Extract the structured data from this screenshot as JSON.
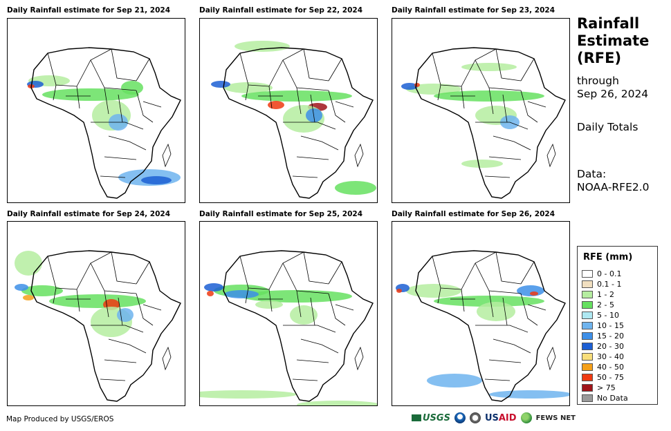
{
  "panels": [
    {
      "title": "Daily Rainfall estimate for Sep 21, 2024"
    },
    {
      "title": "Daily Rainfall estimate for Sep 22, 2024"
    },
    {
      "title": "Daily Rainfall estimate for Sep 23, 2024"
    },
    {
      "title": "Daily Rainfall estimate for Sep 24, 2024"
    },
    {
      "title": "Daily Rainfall estimate for Sep 25, 2024"
    },
    {
      "title": "Daily Rainfall estimate for Sep 26, 2024"
    }
  ],
  "side": {
    "title_lines": [
      "Rainfall",
      "Estimate",
      "(RFE)"
    ],
    "through_label": "through",
    "through_date": "Sep 26, 2024",
    "totals": "Daily Totals",
    "data_label": "Data:",
    "data_source": "NOAA-RFE2.0"
  },
  "legend": {
    "title": "RFE (mm)",
    "items": [
      {
        "label": "0 - 0.1",
        "color": "#ffffff"
      },
      {
        "label": "0.1 - 1",
        "color": "#f1dfc0"
      },
      {
        "label": "1 - 2",
        "color": "#b5eda0"
      },
      {
        "label": "2 - 5",
        "color": "#66e060"
      },
      {
        "label": "5 - 10",
        "color": "#aee8f2"
      },
      {
        "label": "10 - 15",
        "color": "#6fb4ee"
      },
      {
        "label": "15 - 20",
        "color": "#3d8fe8"
      },
      {
        "label": "20 - 30",
        "color": "#1c5fd4"
      },
      {
        "label": "30 - 40",
        "color": "#f8de7a"
      },
      {
        "label": "40 - 50",
        "color": "#f5a01a"
      },
      {
        "label": "50 - 75",
        "color": "#ef3a12"
      },
      {
        "label": "> 75",
        "color": "#a0141a"
      },
      {
        "label": "No Data",
        "color": "#9a9a9a"
      }
    ]
  },
  "footer": {
    "credit": "Map Produced by USGS/EROS",
    "logos": {
      "usgs": "USGS",
      "usaid_a": "US",
      "usaid_b": "AID",
      "fews": "FEWS NET"
    }
  }
}
